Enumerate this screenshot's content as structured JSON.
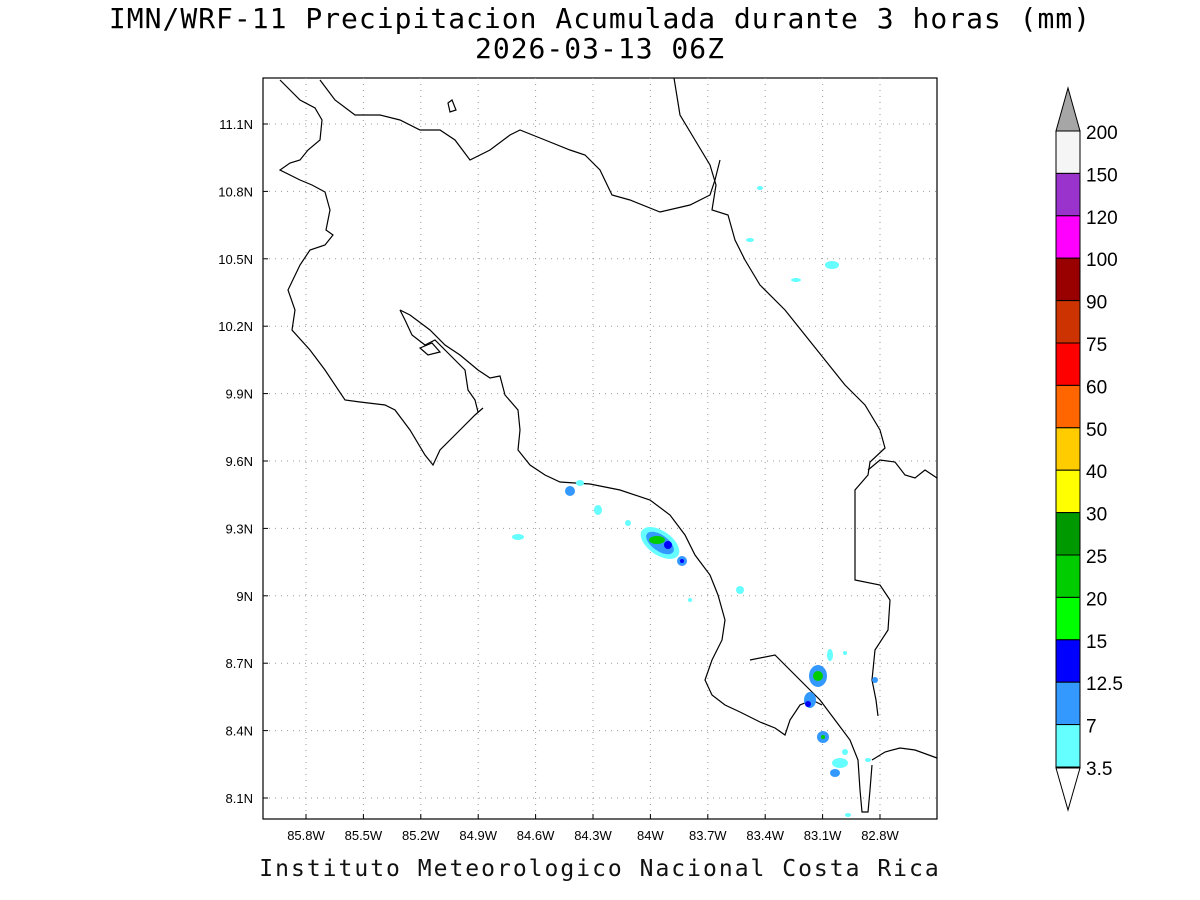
{
  "title": {
    "line1": "IMN/WRF-11 Precipitacion Acumulada durante 3 horas (mm)",
    "line2": "2026-03-13 06Z"
  },
  "footer": "Instituto Meteorologico Nacional Costa Rica",
  "map": {
    "lon_labels": [
      "85.8W",
      "85.5W",
      "85.2W",
      "84.9W",
      "84.6W",
      "84.3W",
      "84W",
      "83.7W",
      "83.4W",
      "83.1W",
      "82.8W"
    ],
    "lat_labels": [
      "11.1N",
      "10.8N",
      "10.5N",
      "10.2N",
      "9.9N",
      "9.6N",
      "9.3N",
      "9N",
      "8.7N",
      "8.4N",
      "8.1N"
    ],
    "gridlines": "dotted",
    "colors": {
      "coastline": "#000000",
      "grid": "#9a9a9a"
    }
  },
  "colorbar": {
    "labels": [
      "200",
      "150",
      "120",
      "100",
      "90",
      "75",
      "60",
      "50",
      "40",
      "30",
      "25",
      "20",
      "15",
      "12.5",
      "7",
      "3.5"
    ],
    "top_cap_color": "#a6a6a6",
    "bottom_cap_color": "#ffffff",
    "swatches": [
      "#f5f5f5",
      "#9933cc",
      "#ff00ff",
      "#990000",
      "#cc3300",
      "#ff0000",
      "#ff6600",
      "#ffcc00",
      "#ffff00",
      "#009900",
      "#00cc00",
      "#00ff00",
      "#0000ff",
      "#3399ff",
      "#66ffff"
    ]
  }
}
